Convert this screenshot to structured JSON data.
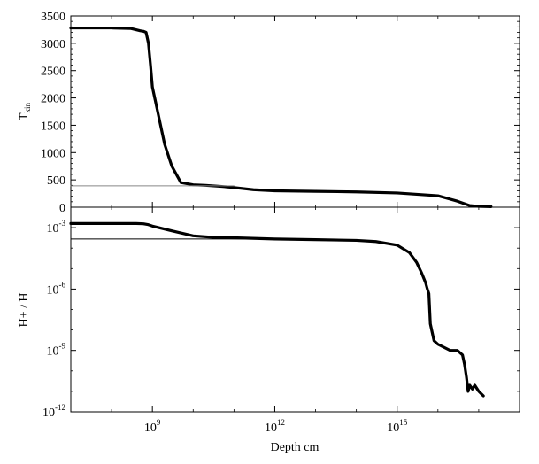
{
  "chart_data": [
    {
      "type": "line",
      "panel": "top",
      "ylabel": "T",
      "ylabel_sub": "kin",
      "x_scale": "log",
      "xlim": [
        10000000.0,
        1e+18
      ],
      "ylim": [
        0,
        3500
      ],
      "y_ticks": [
        "0",
        "500",
        "1000",
        "1500",
        "2000",
        "2500",
        "3000",
        "3500"
      ],
      "y_tick_values": [
        0,
        500,
        1000,
        1500,
        2000,
        2500,
        3000,
        3500
      ],
      "series": [
        {
          "style": "thick-black",
          "x": [
            10000000.0,
            100000000.0,
            300000000.0,
            500000000.0,
            600000000.0,
            700000000.0,
            800000000.0,
            900000000.0,
            1000000000.0,
            2000000000.0,
            3000000000.0,
            5000000000.0,
            10000000000.0,
            20000000000.0,
            50000000000.0,
            100000000000.0,
            300000000000.0,
            1000000000000.0,
            10000000000000.0,
            100000000000000.0,
            1000000000000000.0,
            1e+16,
            3e+16,
            6e+16,
            1e+17,
            2e+17
          ],
          "y": [
            3280,
            3280,
            3270,
            3230,
            3220,
            3200,
            3000,
            2600,
            2200,
            1150,
            750,
            450,
            410,
            400,
            380,
            360,
            320,
            300,
            290,
            280,
            260,
            210,
            110,
            30,
            15,
            10
          ]
        },
        {
          "style": "thin-gray",
          "x": [
            10000000.0,
            100000000000.0
          ],
          "y": [
            390,
            390
          ]
        }
      ],
      "grid": false
    },
    {
      "type": "line",
      "panel": "bottom",
      "ylabel": "H+ / H",
      "xlabel": "Depth cm",
      "x_scale": "log",
      "y_scale": "log",
      "xlim": [
        10000000.0,
        1e+18
      ],
      "ylim": [
        1e-12,
        0.01
      ],
      "x_tick_base": "10",
      "x_tick_exponents": [
        "9",
        "12",
        "15"
      ],
      "x_tick_values": [
        1000000000.0,
        1000000000000.0,
        1000000000000000.0
      ],
      "y_tick_base": "10",
      "y_tick_exponents": [
        "-3",
        "-6",
        "-9",
        "-12"
      ],
      "y_tick_values": [
        0.001,
        1e-06,
        1e-09,
        1e-12
      ],
      "series": [
        {
          "style": "thick-black",
          "x": [
            10000000.0,
            100000000.0,
            400000000.0,
            600000000.0,
            800000000.0,
            1000000000.0,
            3000000000.0,
            10000000000.0,
            30000000000.0,
            100000000000.0,
            1000000000000.0,
            10000000000000.0,
            100000000000000.0,
            300000000000000.0,
            1000000000000000.0,
            2000000000000000.0,
            3000000000000000.0,
            4000000000000000.0,
            5000000000000000.0,
            5500000000000000.0,
            6000000000000000.0,
            6500000000000000.0,
            8000000000000000.0,
            1e+16,
            2e+16,
            3e+16,
            4e+16,
            4.5e+16,
            5e+16,
            5.5e+16,
            6e+16,
            7e+16,
            8e+16,
            1e+17,
            1.3e+17
          ],
          "y": [
            0.0016,
            0.0016,
            0.0016,
            0.00155,
            0.0014,
            0.0012,
            0.0007,
            0.0004,
            0.00034,
            0.00032,
            0.00028,
            0.00026,
            0.00024,
            0.00021,
            0.00014,
            6e-05,
            2e-05,
            6e-06,
            2e-06,
            1e-06,
            6e-07,
            2e-08,
            3e-09,
            2e-09,
            1e-09,
            1e-09,
            6e-10,
            2e-10,
            5e-11,
            1e-11,
            2e-11,
            1.3e-11,
            2e-11,
            1e-11,
            6e-12
          ]
        },
        {
          "style": "thin-black",
          "x": [
            10000000.0,
            1000000000000.0
          ],
          "y": [
            0.00028,
            0.00028
          ]
        }
      ],
      "grid": false
    }
  ]
}
